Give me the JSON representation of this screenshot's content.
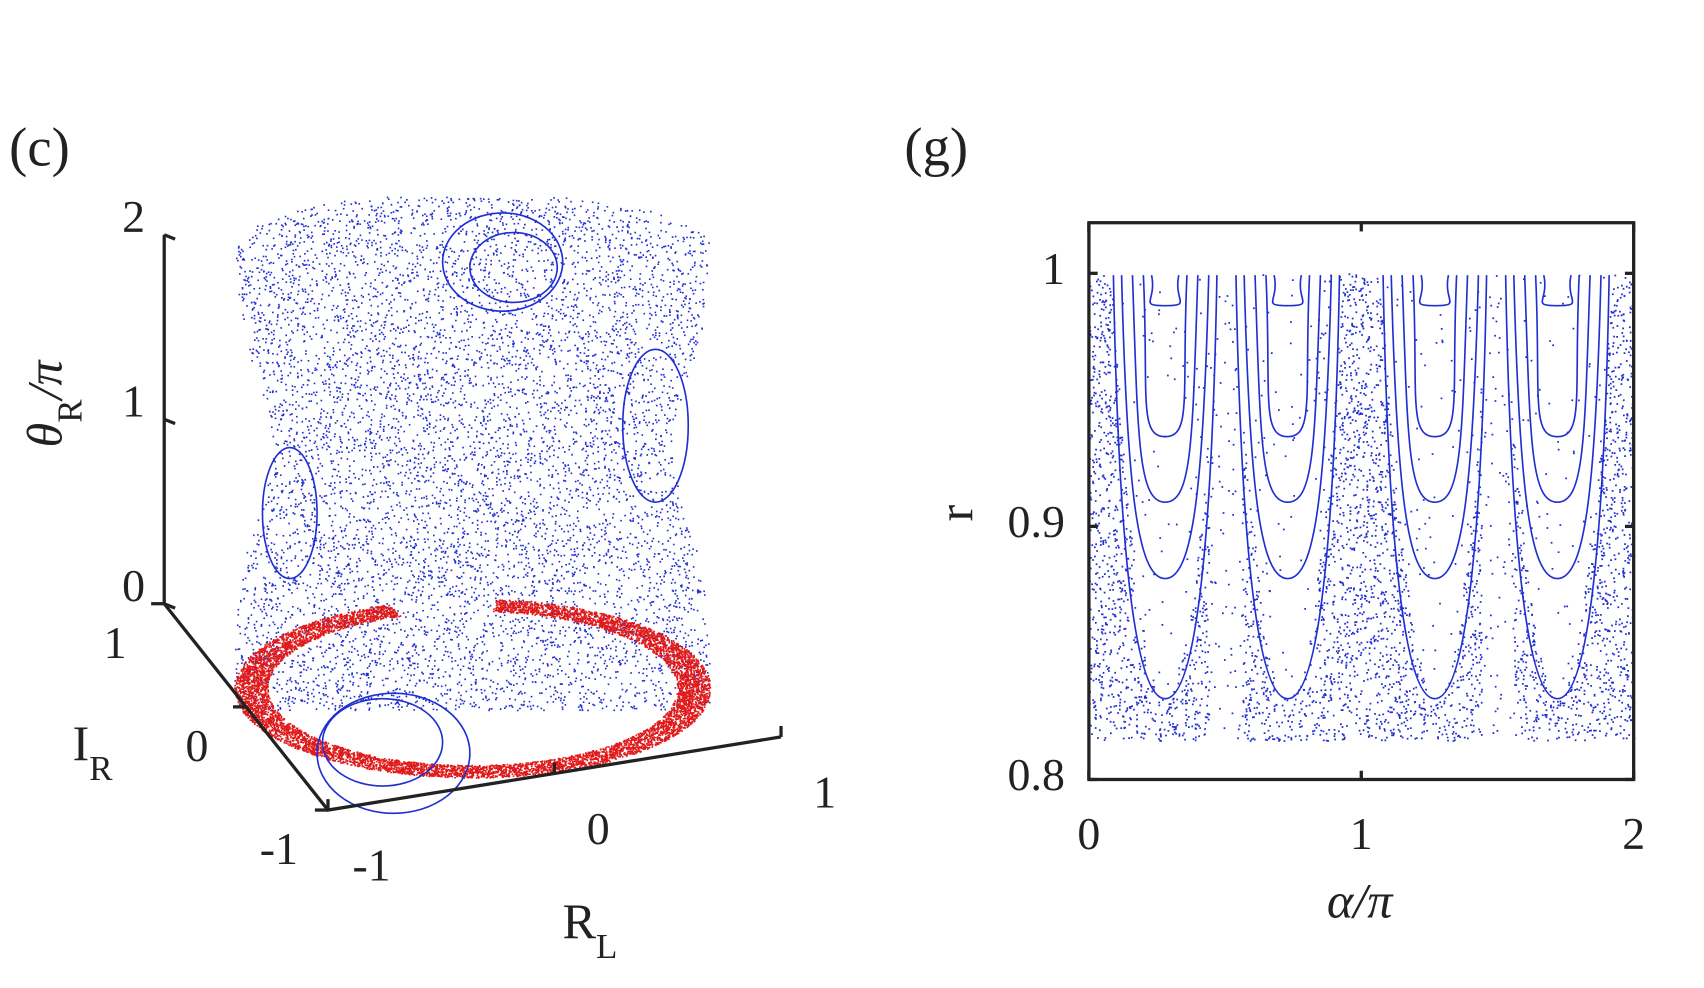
{
  "chart_data": [
    {
      "type": "scatter3d",
      "panel_label": "(c)",
      "xlabel": {
        "main": "R",
        "sub": "L"
      },
      "ylabel": {
        "main": "I",
        "sub": "R"
      },
      "zlabel": {
        "main": "θ",
        "sub": "R",
        "tail": "/π"
      },
      "xlim": [
        -1,
        1
      ],
      "xticks": [
        -1,
        0,
        1
      ],
      "ylim": [
        -1,
        1
      ],
      "yticks": [
        -1,
        0,
        1
      ],
      "zlim": [
        0,
        2
      ],
      "zticks": [
        0,
        1,
        2
      ],
      "colors": [
        "#1f2fd0",
        "#e01a1a"
      ]
    },
    {
      "type": "scatter",
      "panel_label": "(g)",
      "xlabel": "α/π",
      "ylabel": "r",
      "xlim": [
        0,
        2
      ],
      "xticks": [
        0,
        1,
        2
      ],
      "ylim": [
        0.8,
        1.02
      ],
      "yticks": [
        0.8,
        0.9,
        1
      ],
      "color": "#1f2fd0"
    }
  ]
}
